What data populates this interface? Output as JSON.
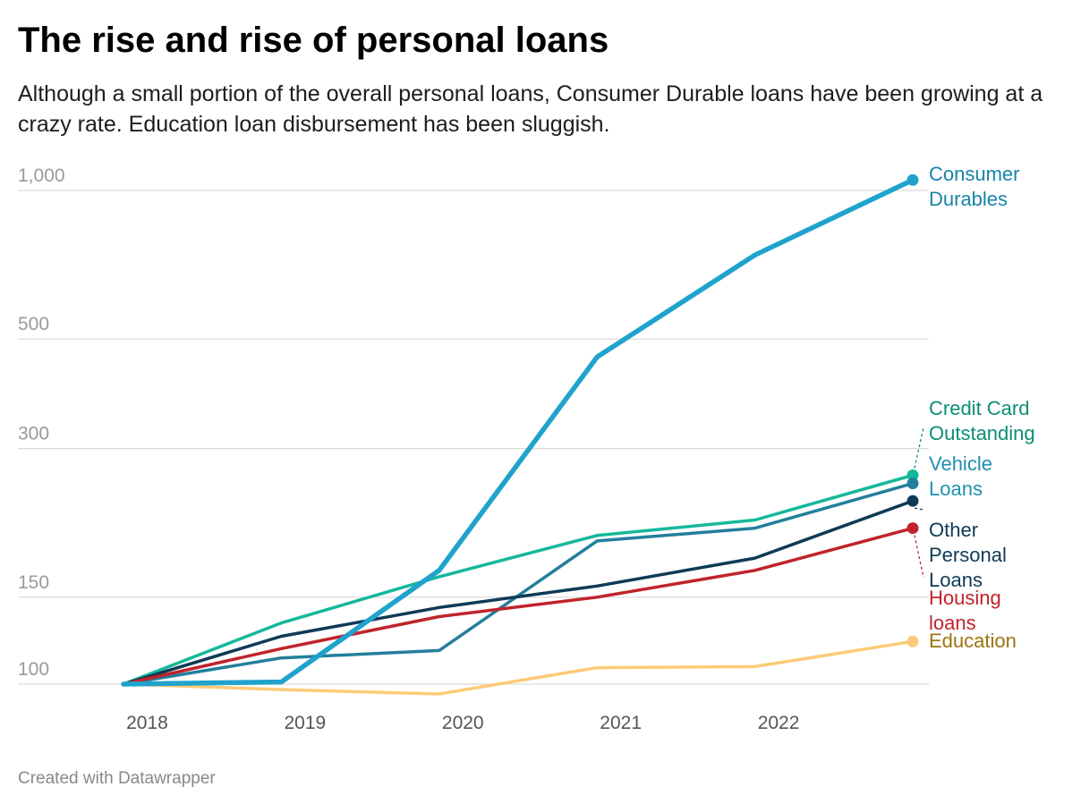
{
  "title": "The rise and rise of personal loans",
  "subtitle": "Although a small portion of the overall personal loans, Consumer Durable loans have been growing at a crazy rate. Education loan disbursement has been sluggish.",
  "credit": "Created with Datawrapper",
  "chart_data": {
    "type": "line",
    "title": "The rise and rise of personal loans",
    "subtitle": "Although a small portion of the overall personal loans, Consumer Durable loans have been growing at a crazy rate. Education loan disbursement has been sluggish.",
    "xlabel": "",
    "ylabel": "",
    "x": [
      2017.85,
      2018.85,
      2019.85,
      2020.85,
      2021.85,
      2022.85
    ],
    "x_ticks": [
      2018,
      2019,
      2020,
      2021,
      2022
    ],
    "x_tick_labels": [
      "2018",
      "2019",
      "2020",
      "2021",
      "2022"
    ],
    "y_scale": "log",
    "ylim": [
      93,
      1100
    ],
    "y_ticks": [
      100,
      150,
      300,
      500,
      1000
    ],
    "y_tick_labels": [
      "100",
      "150",
      "300",
      "500",
      "1,000"
    ],
    "grid": true,
    "legend": "direct labels at line ends (right)",
    "series": [
      {
        "name": "Consumer Durables",
        "label_lines": [
          "Consumer",
          "Durables"
        ],
        "color": "#1fa3cc",
        "label_color": "#1784a8",
        "width": 5.5,
        "end_marker": true,
        "values": [
          100,
          101,
          170,
          460,
          740,
          1050
        ]
      },
      {
        "name": "Credit Card Outstanding",
        "label_lines": [
          "Credit Card",
          "Outstanding"
        ],
        "color": "#15b89a",
        "label_color": "#0a8f73",
        "width": 3.5,
        "end_marker": true,
        "values": [
          100,
          133,
          165,
          200,
          215,
          265
        ]
      },
      {
        "name": "Vehicle Loans",
        "label_lines": [
          "Vehicle",
          "Loans"
        ],
        "color": "#237f9c",
        "label_color": "#1f8fb0",
        "width": 3.5,
        "end_marker": true,
        "values": [
          100,
          113,
          117,
          195,
          207,
          255
        ]
      },
      {
        "name": "Other Personal Loans",
        "label_lines": [
          "Other",
          "Personal",
          "Loans"
        ],
        "color": "#0f3a55",
        "label_color": "#0f3a55",
        "width": 3.5,
        "end_marker": true,
        "values": [
          100,
          125,
          143,
          158,
          180,
          235
        ]
      },
      {
        "name": "Housing loans",
        "label_lines": [
          "Housing",
          "loans"
        ],
        "color": "#c0232a",
        "label_color": "#c0232a",
        "width": 3.5,
        "end_marker": true,
        "values": [
          100,
          118,
          137,
          150,
          170,
          207
        ]
      },
      {
        "name": "Education",
        "label_lines": [
          "Education"
        ],
        "color": "#fccb78",
        "label_color": "#9c7410",
        "width": 3.5,
        "end_marker": true,
        "values": [
          100,
          97.5,
          95.5,
          108,
          108.5,
          122
        ]
      }
    ]
  }
}
